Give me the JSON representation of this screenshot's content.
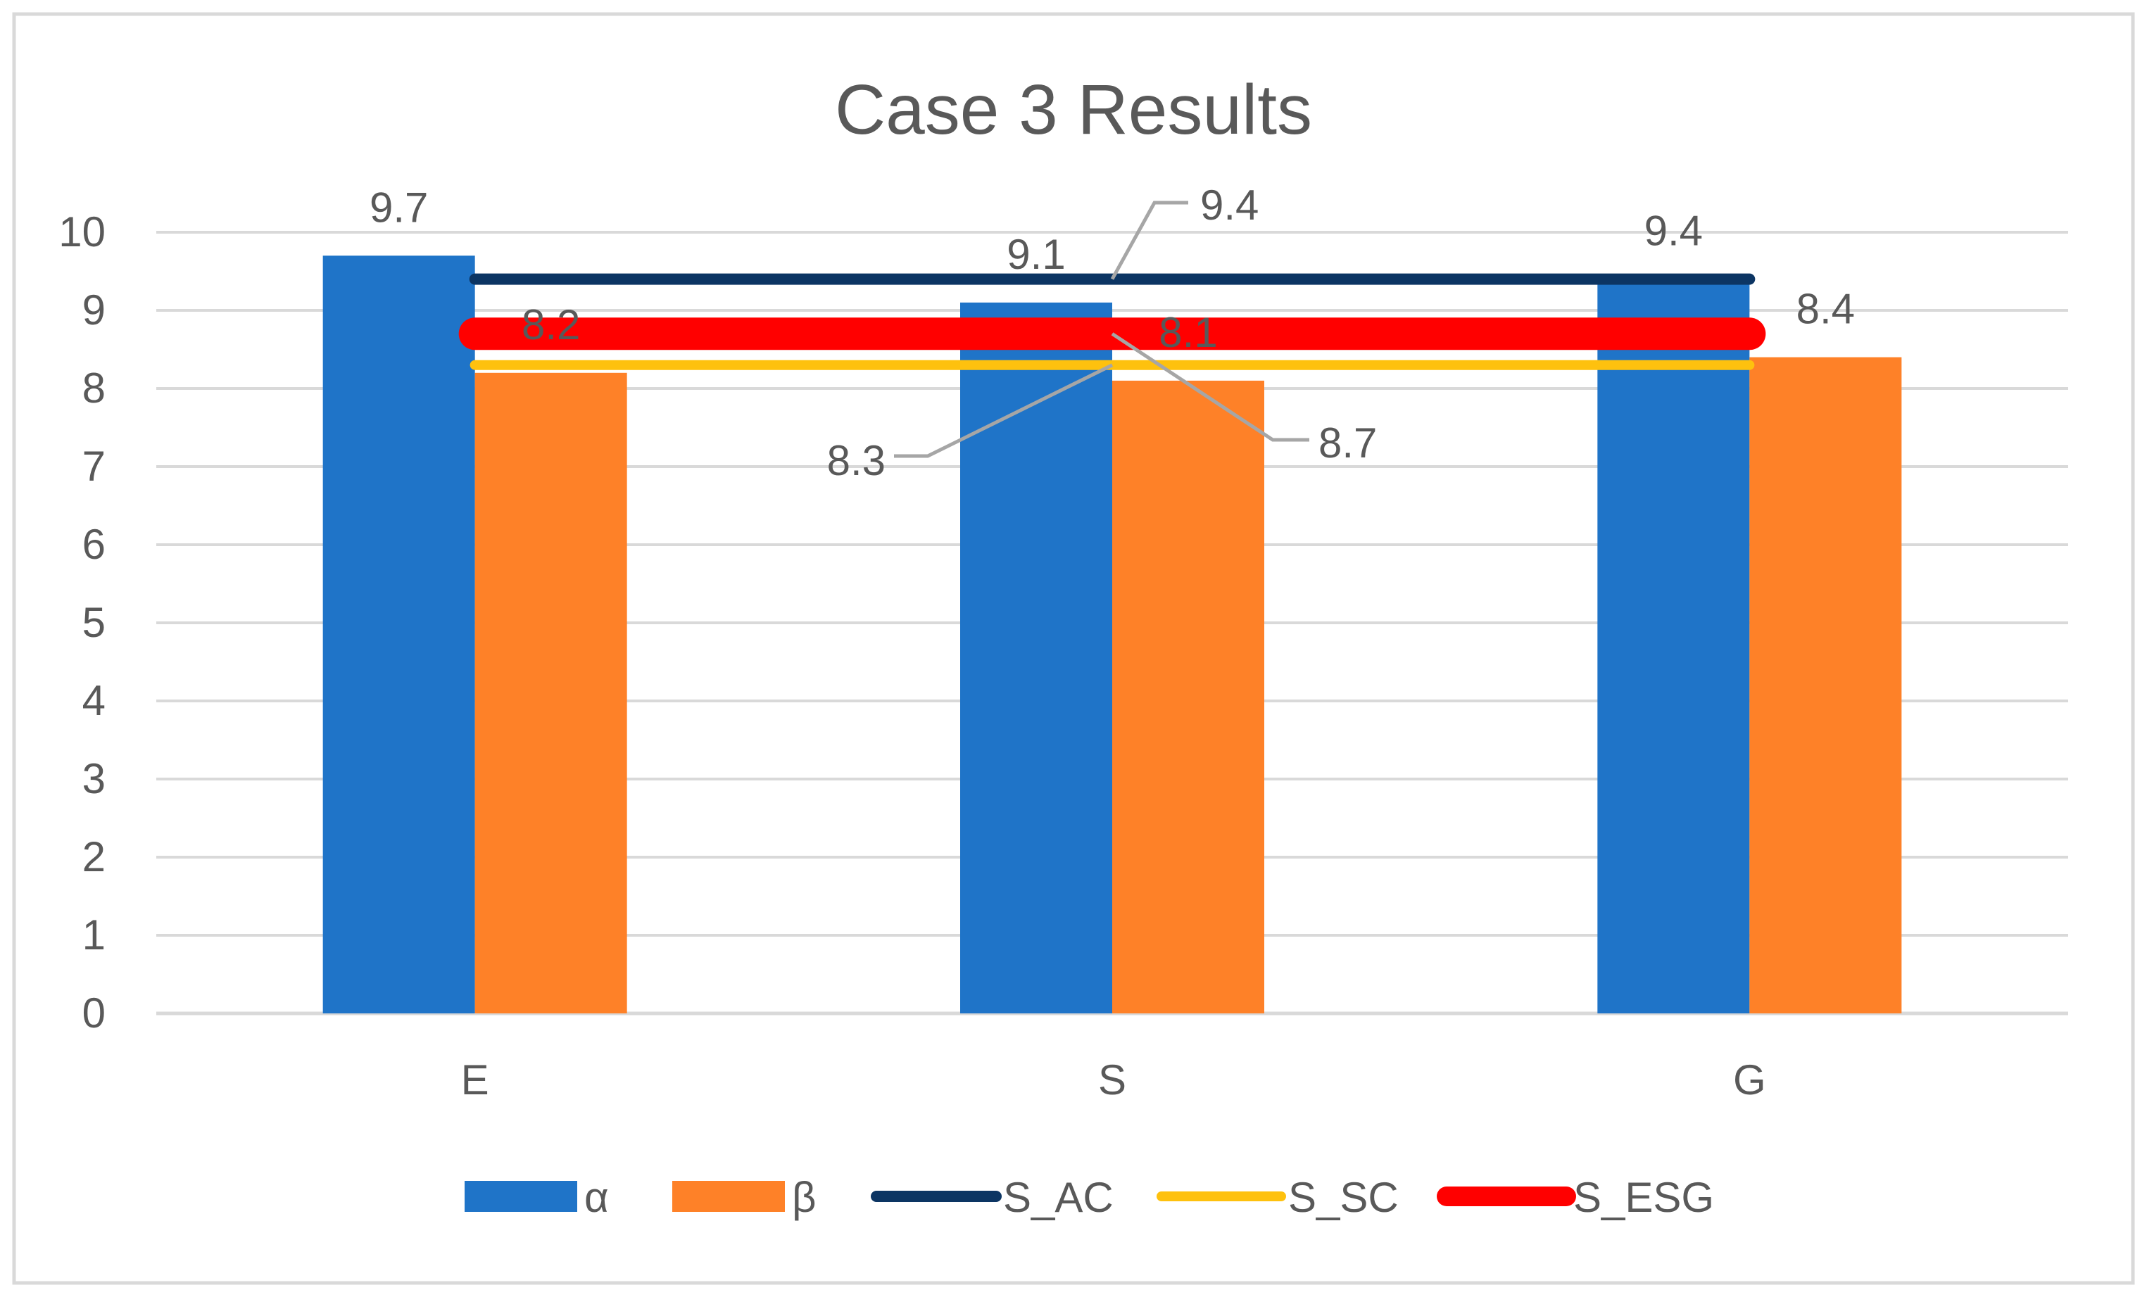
{
  "chart_data": {
    "type": "bar",
    "title": "Case 3 Results",
    "xlabel": "",
    "ylabel": "",
    "ylim": [
      0,
      10
    ],
    "yticks": [
      0,
      1,
      2,
      3,
      4,
      5,
      6,
      7,
      8,
      9,
      10
    ],
    "grid": true,
    "legend_position": "bottom",
    "categories": [
      "E",
      "S",
      "G"
    ],
    "series": [
      {
        "name": "α",
        "kind": "bar",
        "color": "#1F74C8",
        "values": [
          9.7,
          9.1,
          9.4
        ]
      },
      {
        "name": "β",
        "kind": "bar",
        "color": "#FE8128",
        "values": [
          8.2,
          8.1,
          8.4
        ]
      }
    ],
    "reference_lines": [
      {
        "name": "S_AC",
        "value": 9.4,
        "label": "9.4",
        "color": "#0C3563"
      },
      {
        "name": "S_SC",
        "value": 8.3,
        "label": "8.3",
        "color": "#FEC10E"
      },
      {
        "name": "S_ESG",
        "value": 8.7,
        "label": "8.7",
        "color": "#FF0000"
      }
    ]
  }
}
